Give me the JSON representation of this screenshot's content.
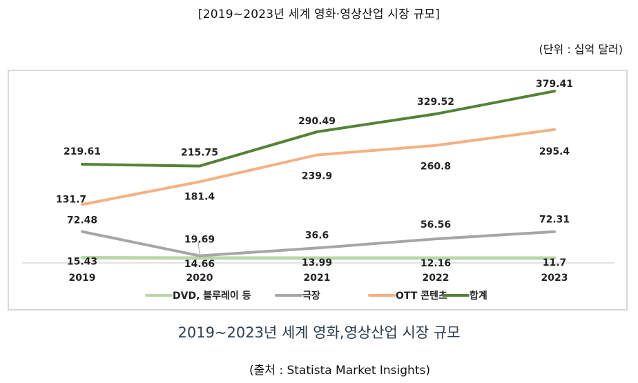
{
  "header": {
    "title": "[2019~2023년 세계 영화·영상산업 시장 규모]",
    "unit": "(단위 : 십억 달러)"
  },
  "caption": "2019~2023년 세계 영화,영상산업 시장 규모",
  "source": "(출처 :  Statista Market Insights)",
  "chart_data": {
    "type": "line",
    "title": "[2019~2023년 세계 영화·영상산업 시장 규모]",
    "unit": "(단위 : 십억 달러)",
    "xlabel": "",
    "ylabel": "",
    "x": [
      "2019",
      "2020",
      "2021",
      "2022",
      "2023"
    ],
    "ylim": [
      0,
      400
    ],
    "grid": false,
    "legend_position": "bottom",
    "series": [
      {
        "name": "DVD, 블루레이 등",
        "color": "#b9d7a8",
        "values": [
          15.43,
          14.66,
          13.99,
          12.16,
          11.7
        ],
        "labels": [
          "15.43",
          "14.66",
          "13.99",
          "12.16",
          "11.7"
        ]
      },
      {
        "name": "극장",
        "color": "#a6a6a6",
        "values": [
          72.48,
          19.69,
          36.6,
          56.56,
          72.31
        ],
        "labels": [
          "72.48",
          "19.69",
          "36.6",
          "56.56",
          "72.31"
        ]
      },
      {
        "name": "OTT 콘텐츠",
        "color": "#f4b183",
        "values": [
          131.7,
          181.4,
          239.9,
          260.8,
          295.4
        ],
        "labels": [
          "131.7",
          "181.4",
          "239.9",
          "260.8",
          "295.4"
        ]
      },
      {
        "name": "합계",
        "color": "#548235",
        "values": [
          219.61,
          215.75,
          290.49,
          329.52,
          379.41
        ],
        "labels": [
          "219.61",
          "215.75",
          "290.49",
          "329.52",
          "379.41"
        ]
      }
    ]
  }
}
